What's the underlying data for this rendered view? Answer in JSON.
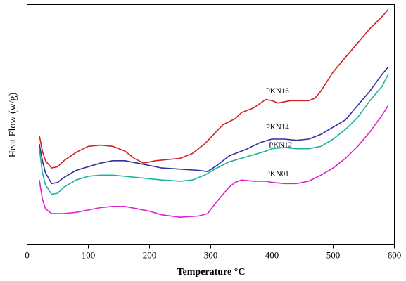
{
  "chart_data": {
    "type": "line",
    "xlabel": "Temperature °C",
    "ylabel": "Heat Flow (w/g)",
    "xlim": [
      0,
      600
    ],
    "ylim": [
      0,
      100
    ],
    "xticks": [
      0,
      100,
      200,
      300,
      400,
      500,
      600
    ],
    "grid": false,
    "series": [
      {
        "name": "PKN16",
        "color": "#d42020",
        "points": [
          [
            20,
            45.5
          ],
          [
            25,
            39
          ],
          [
            30,
            35
          ],
          [
            40,
            32
          ],
          [
            50,
            32.5
          ],
          [
            60,
            35
          ],
          [
            80,
            38.5
          ],
          [
            100,
            41
          ],
          [
            120,
            41.5
          ],
          [
            140,
            41
          ],
          [
            160,
            39
          ],
          [
            175,
            36
          ],
          [
            190,
            34
          ],
          [
            210,
            35
          ],
          [
            230,
            35.5
          ],
          [
            250,
            36
          ],
          [
            270,
            38
          ],
          [
            290,
            42
          ],
          [
            305,
            46
          ],
          [
            320,
            50
          ],
          [
            340,
            52.5
          ],
          [
            350,
            55
          ],
          [
            370,
            57
          ],
          [
            390,
            60.5
          ],
          [
            400,
            60
          ],
          [
            410,
            59
          ],
          [
            430,
            60
          ],
          [
            460,
            60
          ],
          [
            470,
            61
          ],
          [
            480,
            64
          ],
          [
            490,
            68
          ],
          [
            500,
            72
          ],
          [
            520,
            78
          ],
          [
            540,
            84
          ],
          [
            560,
            90
          ],
          [
            580,
            95
          ],
          [
            590,
            98
          ]
        ]
      },
      {
        "name": "PKN14",
        "color": "#3030a0",
        "points": [
          [
            20,
            42
          ],
          [
            25,
            35
          ],
          [
            30,
            30
          ],
          [
            40,
            25.5
          ],
          [
            50,
            26
          ],
          [
            60,
            28
          ],
          [
            80,
            31
          ],
          [
            100,
            32.5
          ],
          [
            120,
            34
          ],
          [
            140,
            35
          ],
          [
            160,
            35
          ],
          [
            180,
            34
          ],
          [
            200,
            33
          ],
          [
            220,
            32
          ],
          [
            250,
            31.5
          ],
          [
            280,
            31
          ],
          [
            295,
            30.5
          ],
          [
            310,
            33
          ],
          [
            330,
            37
          ],
          [
            360,
            40
          ],
          [
            380,
            42.5
          ],
          [
            400,
            44
          ],
          [
            420,
            44
          ],
          [
            440,
            43.5
          ],
          [
            460,
            44
          ],
          [
            480,
            46
          ],
          [
            500,
            49
          ],
          [
            520,
            52
          ],
          [
            540,
            58
          ],
          [
            560,
            64
          ],
          [
            580,
            71
          ],
          [
            590,
            74
          ]
        ]
      },
      {
        "name": "PKN12",
        "color": "#20b0a0",
        "points": [
          [
            20,
            40
          ],
          [
            25,
            30
          ],
          [
            30,
            25
          ],
          [
            40,
            21
          ],
          [
            50,
            21.5
          ],
          [
            60,
            24
          ],
          [
            80,
            27
          ],
          [
            100,
            28.5
          ],
          [
            120,
            29
          ],
          [
            140,
            29
          ],
          [
            160,
            28.5
          ],
          [
            180,
            28
          ],
          [
            200,
            27.5
          ],
          [
            220,
            27
          ],
          [
            250,
            26.5
          ],
          [
            270,
            27
          ],
          [
            290,
            29
          ],
          [
            310,
            32
          ],
          [
            330,
            34.5
          ],
          [
            350,
            36
          ],
          [
            370,
            37.5
          ],
          [
            390,
            39
          ],
          [
            400,
            40
          ],
          [
            420,
            40.5
          ],
          [
            440,
            40
          ],
          [
            460,
            40
          ],
          [
            480,
            41
          ],
          [
            500,
            44
          ],
          [
            520,
            48
          ],
          [
            540,
            53
          ],
          [
            560,
            60
          ],
          [
            580,
            66
          ],
          [
            590,
            71
          ]
        ]
      },
      {
        "name": "PKN01",
        "color": "#e020d0",
        "points": [
          [
            20,
            27
          ],
          [
            25,
            19
          ],
          [
            30,
            15
          ],
          [
            40,
            13
          ],
          [
            60,
            13
          ],
          [
            80,
            13.5
          ],
          [
            100,
            14.5
          ],
          [
            120,
            15.5
          ],
          [
            140,
            16
          ],
          [
            160,
            16
          ],
          [
            180,
            15
          ],
          [
            200,
            14
          ],
          [
            220,
            12.5
          ],
          [
            250,
            11.5
          ],
          [
            280,
            12
          ],
          [
            295,
            13
          ],
          [
            310,
            18
          ],
          [
            320,
            21
          ],
          [
            330,
            24
          ],
          [
            340,
            26
          ],
          [
            350,
            27
          ],
          [
            370,
            26.5
          ],
          [
            390,
            26.5
          ],
          [
            400,
            26
          ],
          [
            420,
            25.5
          ],
          [
            440,
            25.5
          ],
          [
            460,
            26.5
          ],
          [
            480,
            29
          ],
          [
            500,
            32
          ],
          [
            520,
            36
          ],
          [
            540,
            41
          ],
          [
            560,
            47
          ],
          [
            580,
            54
          ],
          [
            590,
            58
          ]
        ]
      }
    ]
  }
}
